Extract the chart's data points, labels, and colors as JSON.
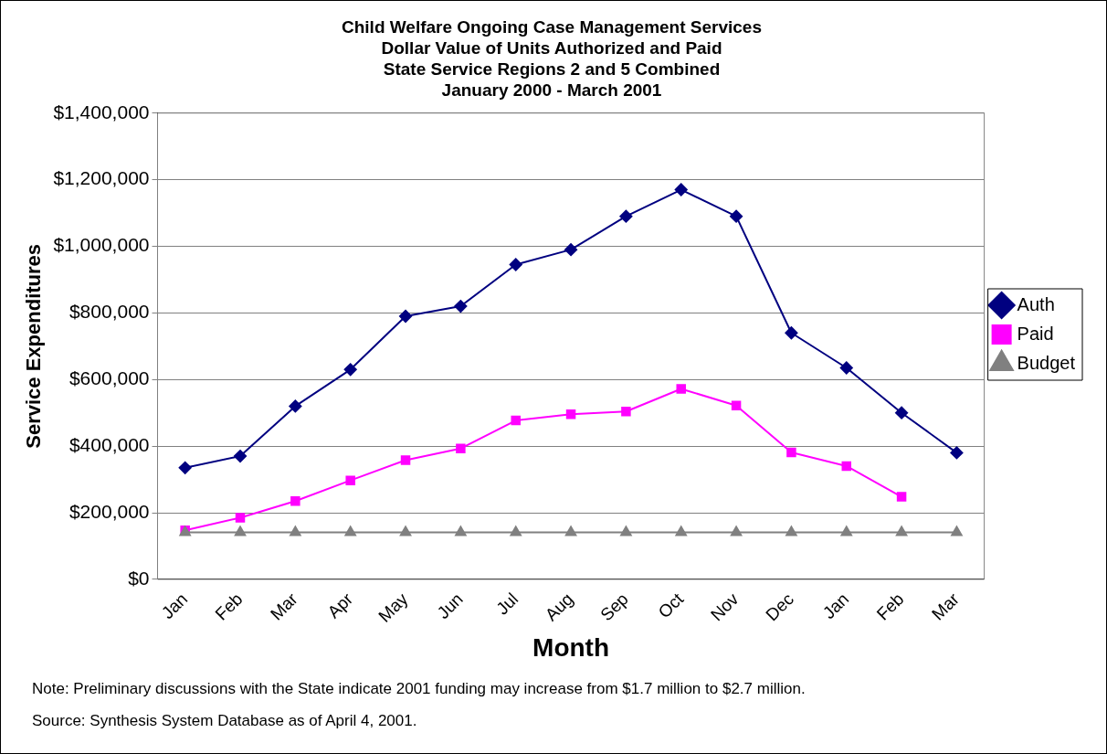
{
  "chart_data": {
    "type": "line",
    "title": "Child Welfare Ongoing Case Management Services\nDollar Value of Units Authorized and Paid\nState Service Regions 2 and 5 Combined\nJanuary 2000 - March 2001",
    "xlabel": "Month",
    "ylabel": "Service Expenditures",
    "categories": [
      "Jan",
      "Feb",
      "Mar",
      "Apr",
      "May",
      "Jun",
      "Jul",
      "Aug",
      "Sep",
      "Oct",
      "Nov",
      "Dec",
      "Jan",
      "Feb",
      "Mar"
    ],
    "series": [
      {
        "name": "Auth",
        "color": "#000080",
        "marker": "diamond",
        "values": [
          335000,
          370000,
          520000,
          630000,
          790000,
          820000,
          945000,
          990000,
          1090000,
          1170000,
          1090000,
          740000,
          635000,
          500000,
          380000
        ]
      },
      {
        "name": "Paid",
        "color": "#ff00ff",
        "marker": "square",
        "values": [
          147000,
          185000,
          235000,
          297000,
          358000,
          393000,
          477000,
          496000,
          504000,
          572000,
          522000,
          381000,
          340000,
          248000,
          null
        ]
      },
      {
        "name": "Budget",
        "color": "#808080",
        "marker": "triangle",
        "values": [
          141000,
          141000,
          141000,
          141000,
          141000,
          141000,
          141000,
          141000,
          141000,
          141000,
          141000,
          141000,
          141000,
          141000,
          141000
        ]
      }
    ],
    "ylim": [
      0,
      1400000
    ],
    "yticks": [
      {
        "value": 0,
        "label": "$0"
      },
      {
        "value": 200000,
        "label": "$200,000"
      },
      {
        "value": 400000,
        "label": "$400,000"
      },
      {
        "value": 600000,
        "label": "$600,000"
      },
      {
        "value": 800000,
        "label": "$800,000"
      },
      {
        "value": 1000000,
        "label": "$1,000,000"
      },
      {
        "value": 1200000,
        "label": "$1,200,000"
      },
      {
        "value": 1400000,
        "label": "$1,400,000"
      }
    ],
    "grid": "y",
    "legend": "right",
    "line_style": "solid",
    "annotations": [
      "Note: Preliminary discussions with the State indicate 2001 funding may increase from $1.7 million to $2.7 million.",
      "Source:  Synthesis System Database as of April 4, 2001."
    ]
  }
}
